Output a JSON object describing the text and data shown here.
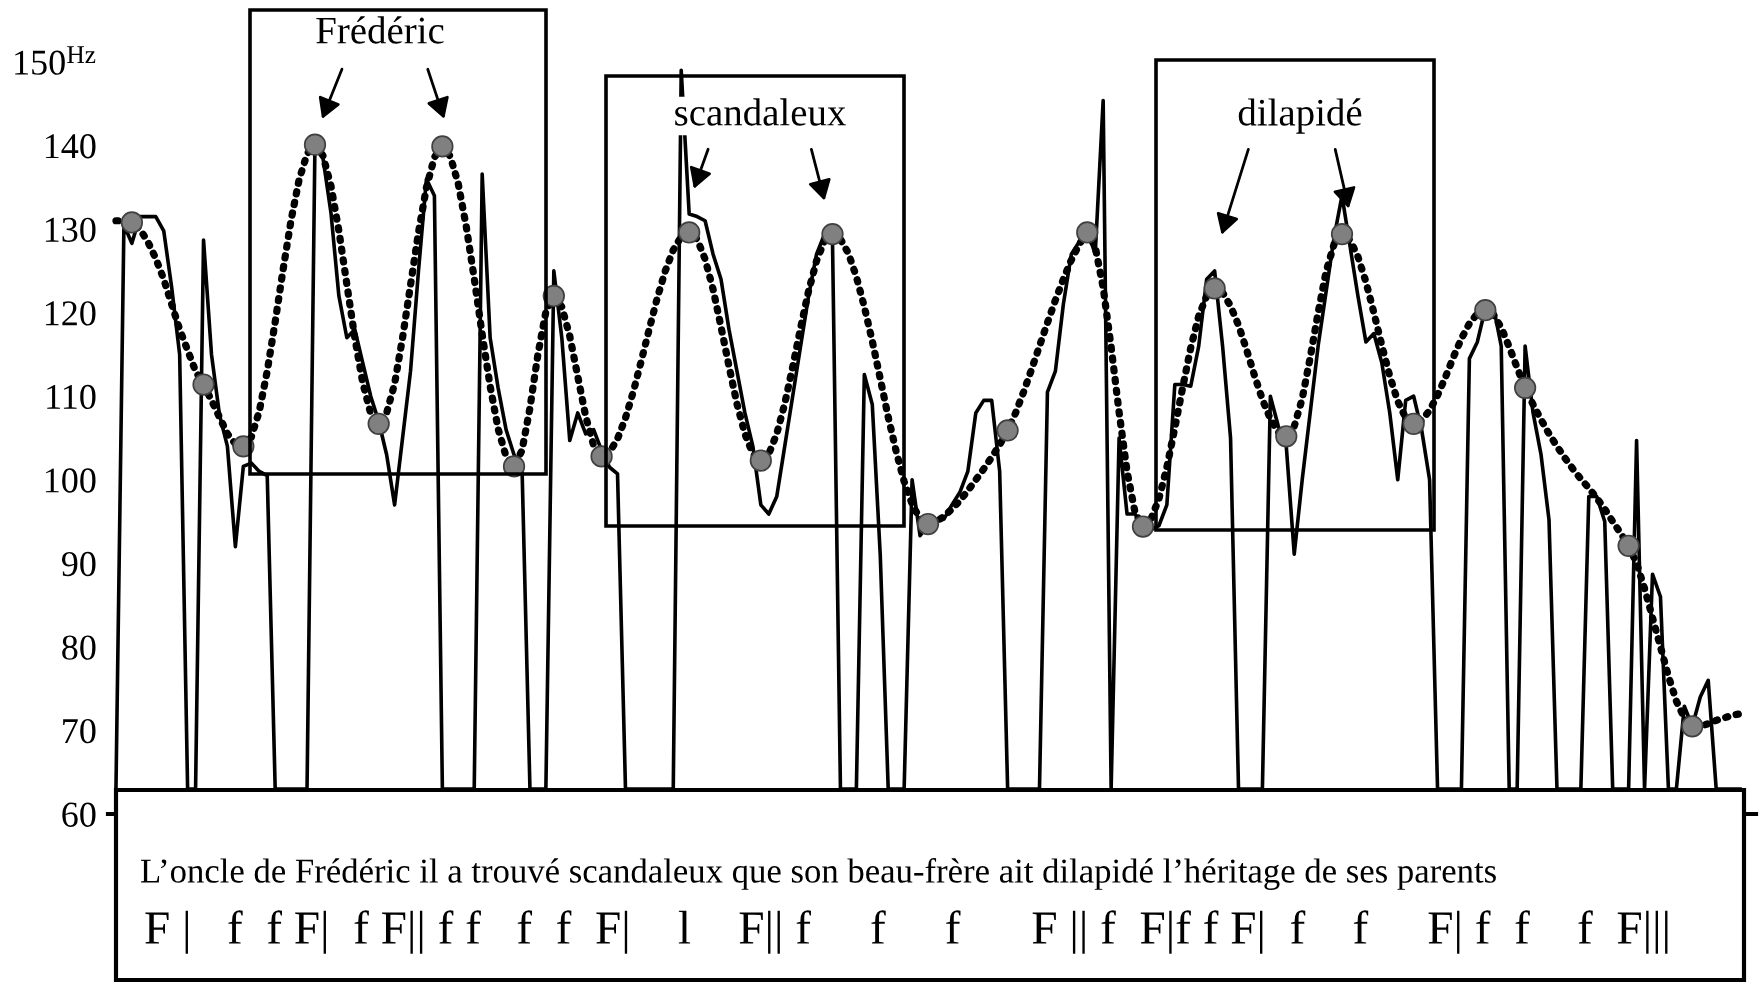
{
  "chart_data": {
    "type": "line",
    "categories": [
      null,
      null,
      null,
      null,
      null,
      null,
      null,
      null,
      null,
      null,
      null,
      null,
      null,
      null,
      null,
      null,
      null,
      null,
      null,
      null,
      null,
      null,
      null,
      null,
      null,
      null,
      null,
      null,
      null,
      null,
      null,
      null,
      null,
      null,
      null,
      null,
      null,
      null,
      null,
      null,
      null,
      null,
      null,
      null,
      null,
      null,
      null,
      null,
      null,
      null,
      null,
      null,
      null,
      null,
      null,
      null,
      null,
      null,
      null,
      null,
      null,
      null,
      null,
      null,
      null,
      null,
      null,
      null,
      null,
      null,
      null,
      null,
      null,
      null,
      null,
      null,
      null,
      null,
      null,
      null,
      null,
      null,
      null,
      null,
      null,
      null,
      null,
      null,
      null,
      null,
      null,
      null,
      null,
      null,
      null,
      null,
      null,
      null,
      null,
      null,
      null,
      null,
      null,
      null,
      null,
      null,
      null,
      null,
      null,
      null,
      null,
      null,
      null,
      null,
      null,
      null,
      null,
      null,
      null,
      null,
      null,
      null,
      null,
      null,
      null,
      null,
      null,
      null,
      null,
      null,
      null,
      null,
      null,
      null,
      null,
      null,
      null,
      null,
      null,
      null,
      null,
      null,
      null,
      null,
      null,
      null,
      null,
      null,
      null,
      null,
      null,
      null,
      null,
      null,
      null,
      null,
      null,
      null,
      null,
      null,
      null,
      null,
      null,
      null,
      null,
      null,
      null,
      null,
      null,
      null,
      null,
      null,
      null,
      null,
      null,
      null,
      null,
      null,
      null,
      null,
      null,
      null,
      null,
      null,
      null,
      null,
      null,
      null,
      null,
      null,
      null,
      null,
      null,
      null,
      null,
      null,
      null,
      null,
      null,
      null,
      null,
      null,
      null,
      null,
      null
    ],
    "series": [
      {
        "color": "#000000",
        "line_style": "solid",
        "values": [
          63,
          130.5,
          128.3,
          131.5,
          131.5,
          131.5,
          129.8,
          123,
          115,
          63,
          63,
          128.7,
          115,
          107.8,
          104,
          92,
          101.6,
          102,
          101,
          100.5,
          63,
          63,
          63,
          63,
          63,
          140.6,
          138.5,
          132,
          122,
          117,
          118,
          114,
          110,
          107,
          103,
          97,
          105,
          113,
          125,
          136,
          134,
          63,
          63,
          63,
          63,
          63,
          136.6,
          117,
          111,
          106,
          103,
          101.6,
          63,
          63,
          63,
          125,
          117,
          104.7,
          108,
          105.5,
          106,
          103.5,
          101.5,
          100.7,
          63,
          63,
          63,
          63,
          63,
          63,
          63,
          149,
          131.8,
          131.5,
          131,
          127,
          124,
          118,
          113,
          108,
          104,
          97,
          95.9,
          98,
          104,
          110,
          116,
          122,
          127,
          129.4,
          128.7,
          63,
          63,
          63,
          112.6,
          109,
          91,
          63,
          63,
          63,
          100,
          93.3,
          94.6,
          95,
          95.3,
          97,
          98.5,
          101,
          108,
          109.5,
          109.5,
          101,
          63,
          63,
          63,
          63,
          63,
          110.5,
          113,
          121,
          127,
          128.5,
          129.9,
          127,
          145.4,
          63,
          105,
          95.9,
          95.9,
          94.5,
          94,
          94.5,
          97,
          111.4,
          111.4,
          111.2,
          116,
          124,
          125,
          116,
          105,
          63,
          63,
          63,
          63,
          110,
          106.4,
          104,
          91.1,
          100,
          108,
          116,
          122.5,
          129,
          134,
          128,
          122,
          116.5,
          117.5,
          114,
          108,
          100,
          109.5,
          110,
          106,
          100,
          63,
          63,
          63,
          63,
          114.5,
          116.5,
          120.5,
          120.8,
          116,
          63,
          63,
          116,
          108,
          103,
          95.2,
          63,
          63,
          63,
          63,
          98,
          98,
          95,
          63,
          63,
          63,
          104.7,
          63,
          88.7,
          86,
          63,
          63,
          72.9,
          70.5,
          74,
          76,
          63,
          63,
          63,
          63
        ]
      },
      {
        "color": "#000000",
        "line_style": "dotted",
        "values": [
          131,
          131,
          130.8,
          130,
          128.5,
          126.5,
          124,
          121,
          118,
          115.5,
          113,
          111.4,
          109.5,
          107.5,
          105.5,
          104.3,
          104,
          105.1,
          108.2,
          113,
          118.9,
          125.2,
          131.1,
          135.9,
          139,
          140.1,
          138.8,
          135.2,
          129.8,
          123.4,
          117,
          111.6,
          107.9,
          106.7,
          108,
          111.5,
          117,
          123.3,
          129.6,
          135,
          138.6,
          139.9,
          138.7,
          135.4,
          130.3,
          124.1,
          117.4,
          111.2,
          106.1,
          102.8,
          101.6,
          103.5,
          108.6,
          115,
          120.1,
          122,
          120.7,
          117.2,
          112.4,
          107.6,
          104.1,
          102.8,
          103.3,
          104.9,
          107.4,
          110.6,
          114.3,
          118.1,
          121.8,
          125,
          127.5,
          129.1,
          129.6,
          128.8,
          126.4,
          122.8,
          118.3,
          113.6,
          109.1,
          105.5,
          103.1,
          102.3,
          103.1,
          105.5,
          109.1,
          113.5,
          118.2,
          122.6,
          126.2,
          128.6,
          129.4,
          128.8,
          127.1,
          124.3,
          120.7,
          116.6,
          112.1,
          107.5,
          103.4,
          99.8,
          97.1,
          95.3,
          94.7,
          95,
          95.6,
          96.5,
          97.5,
          98.7,
          100,
          101.3,
          102.7,
          104.2,
          105.9,
          108,
          110.5,
          113.2,
          116,
          118.8,
          121.5,
          124,
          126.3,
          128.2,
          129.6,
          127.9,
          123,
          115.9,
          108.1,
          101,
          96.1,
          94.4,
          95.3,
          97.7,
          101.5,
          106.2,
          111.1,
          115.8,
          119.6,
          122,
          122.9,
          122.4,
          120.8,
          118.5,
          115.6,
          112.5,
          109.6,
          107.3,
          105.7,
          105.2,
          106.4,
          109.7,
          114.6,
          120,
          124.9,
          128.2,
          129.4,
          128.7,
          126.7,
          123.7,
          120,
          116.1,
          112.4,
          109.4,
          107.4,
          106.7,
          107.1,
          108.3,
          110.1,
          112.3,
          114.7,
          116.9,
          118.7,
          119.9,
          120.3,
          119.8,
          118.2,
          115.9,
          113.4,
          111,
          109,
          107.2,
          105.5,
          104,
          102.6,
          101.3,
          100.1,
          99,
          97.8,
          96.5,
          95,
          93.6,
          92.1,
          90,
          87,
          83.5,
          80,
          76.5,
          73.5,
          71.5,
          70.5,
          70.5,
          70.8,
          71.2,
          71.5,
          71.8,
          72
        ]
      },
      {
        "type": "scatter",
        "color": "#808080",
        "marker": "circle",
        "values": [
          null,
          null,
          130.8,
          null,
          null,
          null,
          null,
          null,
          null,
          null,
          null,
          111.4,
          null,
          null,
          null,
          null,
          104,
          null,
          null,
          null,
          null,
          null,
          null,
          null,
          null,
          140.1,
          null,
          null,
          null,
          null,
          null,
          null,
          null,
          106.7,
          null,
          null,
          null,
          null,
          null,
          null,
          null,
          139.9,
          null,
          null,
          null,
          null,
          null,
          null,
          null,
          null,
          101.6,
          null,
          null,
          null,
          null,
          122,
          null,
          null,
          null,
          null,
          null,
          102.8,
          null,
          null,
          null,
          null,
          null,
          null,
          null,
          null,
          null,
          null,
          129.6,
          null,
          null,
          null,
          null,
          null,
          null,
          null,
          null,
          102.3,
          null,
          null,
          null,
          null,
          null,
          null,
          null,
          null,
          129.4,
          null,
          null,
          null,
          null,
          null,
          null,
          null,
          null,
          null,
          null,
          null,
          94.7,
          null,
          null,
          null,
          null,
          null,
          null,
          null,
          null,
          null,
          105.9,
          null,
          null,
          null,
          null,
          null,
          null,
          null,
          null,
          null,
          129.6,
          null,
          null,
          null,
          null,
          null,
          null,
          94.4,
          null,
          null,
          null,
          null,
          null,
          null,
          null,
          null,
          122.9,
          null,
          null,
          null,
          null,
          null,
          null,
          null,
          null,
          105.2,
          null,
          null,
          null,
          null,
          null,
          null,
          129.4,
          null,
          null,
          null,
          null,
          null,
          null,
          null,
          null,
          106.7,
          null,
          null,
          null,
          null,
          null,
          null,
          null,
          null,
          120.3,
          null,
          null,
          null,
          null,
          111,
          null,
          null,
          null,
          null,
          null,
          null,
          null,
          null,
          null,
          null,
          null,
          null,
          92.1,
          null,
          null,
          null,
          null,
          null,
          null,
          null,
          70.5,
          null,
          null,
          null,
          null,
          null,
          null
        ]
      }
    ],
    "ylim": [
      60,
      150
    ],
    "yticks": [
      60,
      70,
      80,
      90,
      100,
      110,
      120,
      130,
      140,
      {
        "value": 150,
        "label": "150$^{Hz}$"
      }
    ],
    "tick_labels": "y",
    "annotations": [
      "Frédéric",
      "scandaleux",
      "dilapidé",
      "L’oncle de Frédéric il a trouvé scandaleux que son beau-frère ait dilapidé l’héritage de ses parents",
      "F |   f  f F|  f F|| f f   f  f  F|    l    F|| f     f     f      F || f  F|f f F|  f    f     F| f  f    f  F|||"
    ]
  }
}
